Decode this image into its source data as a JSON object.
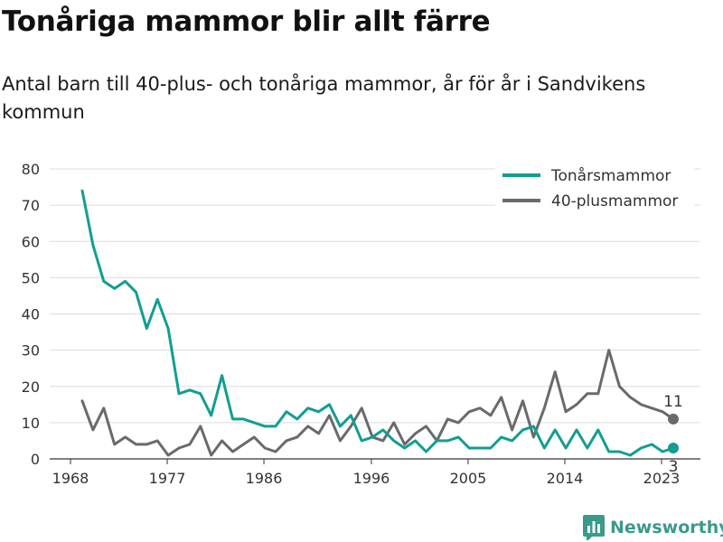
{
  "title": "Tonåriga mammor blir allt färre",
  "subtitle": "Antal barn till 40-plus- och tonåriga mammor, år för år i Sandvikens kommun",
  "brand": "Newsworthy",
  "colors": {
    "teen": "#119e92",
    "plus40": "#6a6a6d",
    "grid": "#dcdcdc",
    "axis": "#333333",
    "brand": "#3a9a8b"
  },
  "chart_data": {
    "type": "line",
    "x": [
      1968,
      1969,
      1970,
      1971,
      1972,
      1973,
      1974,
      1975,
      1976,
      1977,
      1978,
      1979,
      1980,
      1981,
      1982,
      1983,
      1984,
      1985,
      1986,
      1987,
      1988,
      1989,
      1990,
      1991,
      1992,
      1993,
      1994,
      1995,
      1996,
      1997,
      1998,
      1999,
      2000,
      2001,
      2002,
      2003,
      2004,
      2005,
      2006,
      2007,
      2008,
      2009,
      2010,
      2011,
      2012,
      2013,
      2014,
      2015,
      2016,
      2017,
      2018,
      2019,
      2020,
      2021,
      2022,
      2023
    ],
    "series": [
      {
        "name": "Tonårsmammor",
        "color": "#119e92",
        "values": [
          74,
          59,
          49,
          47,
          49,
          46,
          36,
          44,
          36,
          18,
          19,
          18,
          12,
          23,
          11,
          11,
          10,
          9,
          9,
          13,
          11,
          14,
          13,
          15,
          9,
          12,
          5,
          6,
          8,
          5,
          3,
          5,
          2,
          5,
          5,
          6,
          3,
          3,
          3,
          6,
          5,
          8,
          9,
          3,
          8,
          3,
          8,
          3,
          8,
          2,
          2,
          1,
          3,
          4,
          2,
          3
        ],
        "end_label": "3"
      },
      {
        "name": "40-plusmammor",
        "color": "#6a6a6d",
        "values": [
          16,
          8,
          14,
          4,
          6,
          4,
          4,
          5,
          1,
          3,
          4,
          9,
          1,
          5,
          2,
          4,
          6,
          3,
          2,
          5,
          6,
          9,
          7,
          12,
          5,
          9,
          14,
          6,
          5,
          10,
          4,
          7,
          9,
          5,
          11,
          10,
          13,
          14,
          12,
          17,
          8,
          16,
          6,
          14,
          24,
          13,
          15,
          18,
          18,
          30,
          20,
          17,
          15,
          14,
          13,
          11
        ],
        "end_label": "11"
      }
    ],
    "xticks": [
      "1968",
      "1977",
      "1986",
      "1996",
      "2005",
      "2014",
      "2023"
    ],
    "xtick_values": [
      1968,
      1977,
      1986,
      1996,
      2005,
      2014,
      2023
    ],
    "yticks": [
      "0",
      "10",
      "20",
      "30",
      "40",
      "50",
      "60",
      "70",
      "80"
    ],
    "ylim": [
      0,
      80
    ],
    "grid": true,
    "legend_position": "top-right"
  }
}
